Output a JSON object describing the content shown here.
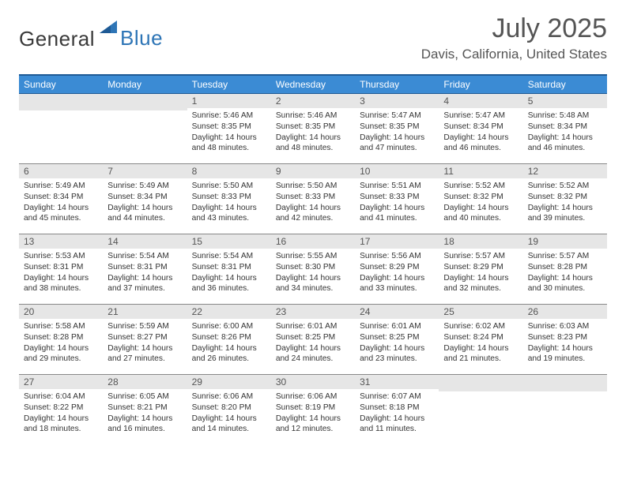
{
  "brand": {
    "general": "General",
    "blue": "Blue"
  },
  "title": "July 2025",
  "location": "Davis, California, United States",
  "colors": {
    "header_bg": "#3b8bd4",
    "header_border": "#1e5a95",
    "daynum_bg": "#e6e6e6",
    "brand_blue": "#2e75b6",
    "text": "#333333"
  },
  "weekdays": [
    "Sunday",
    "Monday",
    "Tuesday",
    "Wednesday",
    "Thursday",
    "Friday",
    "Saturday"
  ],
  "weeks": [
    [
      {
        "empty": true
      },
      {
        "empty": true
      },
      {
        "day": "1",
        "sunrise": "Sunrise: 5:46 AM",
        "sunset": "Sunset: 8:35 PM",
        "daylight1": "Daylight: 14 hours",
        "daylight2": "and 48 minutes."
      },
      {
        "day": "2",
        "sunrise": "Sunrise: 5:46 AM",
        "sunset": "Sunset: 8:35 PM",
        "daylight1": "Daylight: 14 hours",
        "daylight2": "and 48 minutes."
      },
      {
        "day": "3",
        "sunrise": "Sunrise: 5:47 AM",
        "sunset": "Sunset: 8:35 PM",
        "daylight1": "Daylight: 14 hours",
        "daylight2": "and 47 minutes."
      },
      {
        "day": "4",
        "sunrise": "Sunrise: 5:47 AM",
        "sunset": "Sunset: 8:34 PM",
        "daylight1": "Daylight: 14 hours",
        "daylight2": "and 46 minutes."
      },
      {
        "day": "5",
        "sunrise": "Sunrise: 5:48 AM",
        "sunset": "Sunset: 8:34 PM",
        "daylight1": "Daylight: 14 hours",
        "daylight2": "and 46 minutes."
      }
    ],
    [
      {
        "day": "6",
        "sunrise": "Sunrise: 5:49 AM",
        "sunset": "Sunset: 8:34 PM",
        "daylight1": "Daylight: 14 hours",
        "daylight2": "and 45 minutes."
      },
      {
        "day": "7",
        "sunrise": "Sunrise: 5:49 AM",
        "sunset": "Sunset: 8:34 PM",
        "daylight1": "Daylight: 14 hours",
        "daylight2": "and 44 minutes."
      },
      {
        "day": "8",
        "sunrise": "Sunrise: 5:50 AM",
        "sunset": "Sunset: 8:33 PM",
        "daylight1": "Daylight: 14 hours",
        "daylight2": "and 43 minutes."
      },
      {
        "day": "9",
        "sunrise": "Sunrise: 5:50 AM",
        "sunset": "Sunset: 8:33 PM",
        "daylight1": "Daylight: 14 hours",
        "daylight2": "and 42 minutes."
      },
      {
        "day": "10",
        "sunrise": "Sunrise: 5:51 AM",
        "sunset": "Sunset: 8:33 PM",
        "daylight1": "Daylight: 14 hours",
        "daylight2": "and 41 minutes."
      },
      {
        "day": "11",
        "sunrise": "Sunrise: 5:52 AM",
        "sunset": "Sunset: 8:32 PM",
        "daylight1": "Daylight: 14 hours",
        "daylight2": "and 40 minutes."
      },
      {
        "day": "12",
        "sunrise": "Sunrise: 5:52 AM",
        "sunset": "Sunset: 8:32 PM",
        "daylight1": "Daylight: 14 hours",
        "daylight2": "and 39 minutes."
      }
    ],
    [
      {
        "day": "13",
        "sunrise": "Sunrise: 5:53 AM",
        "sunset": "Sunset: 8:31 PM",
        "daylight1": "Daylight: 14 hours",
        "daylight2": "and 38 minutes."
      },
      {
        "day": "14",
        "sunrise": "Sunrise: 5:54 AM",
        "sunset": "Sunset: 8:31 PM",
        "daylight1": "Daylight: 14 hours",
        "daylight2": "and 37 minutes."
      },
      {
        "day": "15",
        "sunrise": "Sunrise: 5:54 AM",
        "sunset": "Sunset: 8:31 PM",
        "daylight1": "Daylight: 14 hours",
        "daylight2": "and 36 minutes."
      },
      {
        "day": "16",
        "sunrise": "Sunrise: 5:55 AM",
        "sunset": "Sunset: 8:30 PM",
        "daylight1": "Daylight: 14 hours",
        "daylight2": "and 34 minutes."
      },
      {
        "day": "17",
        "sunrise": "Sunrise: 5:56 AM",
        "sunset": "Sunset: 8:29 PM",
        "daylight1": "Daylight: 14 hours",
        "daylight2": "and 33 minutes."
      },
      {
        "day": "18",
        "sunrise": "Sunrise: 5:57 AM",
        "sunset": "Sunset: 8:29 PM",
        "daylight1": "Daylight: 14 hours",
        "daylight2": "and 32 minutes."
      },
      {
        "day": "19",
        "sunrise": "Sunrise: 5:57 AM",
        "sunset": "Sunset: 8:28 PM",
        "daylight1": "Daylight: 14 hours",
        "daylight2": "and 30 minutes."
      }
    ],
    [
      {
        "day": "20",
        "sunrise": "Sunrise: 5:58 AM",
        "sunset": "Sunset: 8:28 PM",
        "daylight1": "Daylight: 14 hours",
        "daylight2": "and 29 minutes."
      },
      {
        "day": "21",
        "sunrise": "Sunrise: 5:59 AM",
        "sunset": "Sunset: 8:27 PM",
        "daylight1": "Daylight: 14 hours",
        "daylight2": "and 27 minutes."
      },
      {
        "day": "22",
        "sunrise": "Sunrise: 6:00 AM",
        "sunset": "Sunset: 8:26 PM",
        "daylight1": "Daylight: 14 hours",
        "daylight2": "and 26 minutes."
      },
      {
        "day": "23",
        "sunrise": "Sunrise: 6:01 AM",
        "sunset": "Sunset: 8:25 PM",
        "daylight1": "Daylight: 14 hours",
        "daylight2": "and 24 minutes."
      },
      {
        "day": "24",
        "sunrise": "Sunrise: 6:01 AM",
        "sunset": "Sunset: 8:25 PM",
        "daylight1": "Daylight: 14 hours",
        "daylight2": "and 23 minutes."
      },
      {
        "day": "25",
        "sunrise": "Sunrise: 6:02 AM",
        "sunset": "Sunset: 8:24 PM",
        "daylight1": "Daylight: 14 hours",
        "daylight2": "and 21 minutes."
      },
      {
        "day": "26",
        "sunrise": "Sunrise: 6:03 AM",
        "sunset": "Sunset: 8:23 PM",
        "daylight1": "Daylight: 14 hours",
        "daylight2": "and 19 minutes."
      }
    ],
    [
      {
        "day": "27",
        "sunrise": "Sunrise: 6:04 AM",
        "sunset": "Sunset: 8:22 PM",
        "daylight1": "Daylight: 14 hours",
        "daylight2": "and 18 minutes."
      },
      {
        "day": "28",
        "sunrise": "Sunrise: 6:05 AM",
        "sunset": "Sunset: 8:21 PM",
        "daylight1": "Daylight: 14 hours",
        "daylight2": "and 16 minutes."
      },
      {
        "day": "29",
        "sunrise": "Sunrise: 6:06 AM",
        "sunset": "Sunset: 8:20 PM",
        "daylight1": "Daylight: 14 hours",
        "daylight2": "and 14 minutes."
      },
      {
        "day": "30",
        "sunrise": "Sunrise: 6:06 AM",
        "sunset": "Sunset: 8:19 PM",
        "daylight1": "Daylight: 14 hours",
        "daylight2": "and 12 minutes."
      },
      {
        "day": "31",
        "sunrise": "Sunrise: 6:07 AM",
        "sunset": "Sunset: 8:18 PM",
        "daylight1": "Daylight: 14 hours",
        "daylight2": "and 11 minutes."
      },
      {
        "empty": true
      },
      {
        "empty": true
      }
    ]
  ]
}
